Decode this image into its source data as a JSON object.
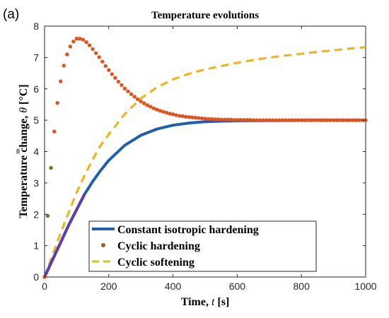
{
  "panel_label": "(a)",
  "chart_data": {
    "type": "line",
    "title": "Temperature evolutions",
    "xlabel": "Time, t [s]",
    "ylabel": "Temperature change, θ̄̄ [°C]",
    "xlabel_parts": {
      "pre": "Time, ",
      "var": "t",
      "post": " [s]"
    },
    "ylabel_parts": {
      "pre": "Temperature change, ",
      "var": "θ",
      "post": " [°C]"
    },
    "xlim": [
      0,
      1000
    ],
    "ylim": [
      0,
      8
    ],
    "xticks": [
      "0",
      "200",
      "400",
      "600",
      "800",
      "1000"
    ],
    "yticks": [
      "0",
      "1",
      "2",
      "3",
      "4",
      "5",
      "6",
      "7",
      "8"
    ],
    "grid": false,
    "legend_position": "bottom-center",
    "series": [
      {
        "name": "Constant isotropic hardening",
        "style": "solid",
        "color": "#1f5fae",
        "tail_color": "#5a3fb0",
        "x": [
          0,
          25,
          50,
          75,
          100,
          125,
          150,
          175,
          200,
          250,
          300,
          350,
          400,
          450,
          500,
          550,
          600,
          700,
          800,
          900,
          1000
        ],
        "y": [
          0.0,
          0.55,
          1.1,
          1.65,
          2.15,
          2.65,
          3.05,
          3.4,
          3.72,
          4.2,
          4.52,
          4.72,
          4.84,
          4.91,
          4.95,
          4.97,
          4.98,
          4.99,
          5.0,
          5.0,
          5.0
        ]
      },
      {
        "name": "Cyclic hardening",
        "style": "markers",
        "color": "#e0531e",
        "legend_color": "#8b6a1e",
        "x": [
          0,
          10,
          20,
          30,
          40,
          50,
          60,
          70,
          80,
          90,
          100,
          110,
          120,
          130,
          140,
          150,
          160,
          170,
          180,
          190,
          200,
          210,
          220,
          230,
          240,
          250,
          260,
          270,
          280,
          290,
          300,
          310,
          320,
          330,
          340,
          350,
          360,
          370,
          380,
          390,
          400,
          410,
          420,
          430,
          440,
          450,
          460,
          470,
          480,
          490,
          500,
          510,
          520,
          530,
          540,
          550,
          560,
          570,
          580,
          590,
          600,
          610,
          620,
          630,
          640,
          650,
          660,
          670,
          680,
          690,
          700,
          710,
          720,
          730,
          740,
          750,
          760,
          770,
          780,
          790,
          800,
          810,
          820,
          830,
          840,
          850,
          860,
          870,
          880,
          890,
          900,
          910,
          920,
          930,
          940,
          950,
          960,
          970,
          980,
          990,
          1000
        ],
        "y": [
          0.0,
          1.95,
          3.48,
          4.64,
          5.55,
          6.24,
          6.74,
          7.1,
          7.35,
          7.51,
          7.6,
          7.6,
          7.57,
          7.49,
          7.39,
          7.27,
          7.14,
          7.01,
          6.87,
          6.73,
          6.6,
          6.47,
          6.35,
          6.23,
          6.12,
          6.01,
          5.92,
          5.83,
          5.75,
          5.67,
          5.6,
          5.54,
          5.48,
          5.43,
          5.38,
          5.34,
          5.3,
          5.27,
          5.24,
          5.21,
          5.19,
          5.16,
          5.14,
          5.13,
          5.11,
          5.1,
          5.09,
          5.08,
          5.07,
          5.06,
          5.05,
          5.04,
          5.04,
          5.03,
          5.03,
          5.02,
          5.02,
          5.02,
          5.02,
          5.01,
          5.01,
          5.01,
          5.01,
          5.01,
          5.01,
          5.0,
          5.0,
          5.0,
          5.0,
          5.0,
          5.0,
          5.0,
          5.0,
          5.0,
          5.0,
          5.0,
          5.0,
          5.0,
          5.0,
          5.0,
          5.0,
          5.0,
          5.0,
          5.0,
          5.0,
          5.0,
          5.0,
          5.0,
          5.0,
          5.0,
          5.0,
          5.0,
          5.0,
          5.0,
          5.0,
          5.0,
          5.0,
          5.0,
          5.0,
          5.0,
          5.0
        ]
      },
      {
        "name": "Cyclic softening",
        "style": "dashed",
        "color": "#efb520",
        "legend_color": "#d4c21a",
        "x": [
          0,
          25,
          50,
          75,
          100,
          125,
          150,
          175,
          200,
          250,
          300,
          350,
          400,
          450,
          500,
          550,
          600,
          650,
          700,
          750,
          800,
          850,
          900,
          950,
          1000
        ],
        "y": [
          0.0,
          0.7,
          1.4,
          2.05,
          2.7,
          3.25,
          3.75,
          4.2,
          4.55,
          5.2,
          5.7,
          6.05,
          6.3,
          6.48,
          6.62,
          6.73,
          6.83,
          6.92,
          7.0,
          7.06,
          7.12,
          7.18,
          7.23,
          7.28,
          7.33
        ]
      }
    ]
  }
}
